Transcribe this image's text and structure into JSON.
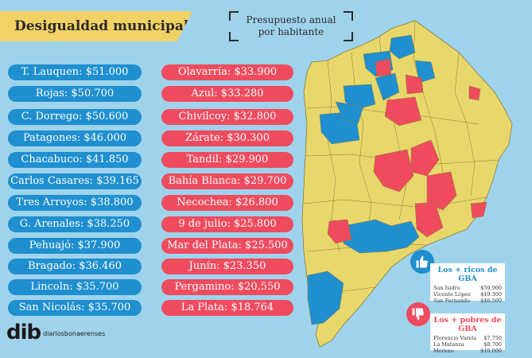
{
  "title": "Desigualdad municipal",
  "subtitle_line1": "Presupuesto anual",
  "subtitle_line2": "por habitante",
  "blue_list": [
    "T. Lauquen: $51.000",
    "Rojas: $50.700",
    "C. Dorrego: $50.600",
    "Patagones: $46.000",
    "Chacabuco: $41.850",
    "Carlos Casares: $39.165",
    "Tres Arroyos: $38.800",
    "G. Arenales: $38.250",
    "Pehuajó: $37.900",
    "Bragado: $36.460",
    "Lincoln: $35.700",
    "San Nicolás: $35.700"
  ],
  "red_list": [
    "Olavarría: $33.900",
    "Azul: $33.280",
    "Chivilcoy: $32.800",
    "Zárate: $30.300",
    "Tandil: $29.900",
    "Bahía Blanca: $29.700",
    "Necochea: $26.800",
    "9 de julio: $25.800",
    "Mar del Plata: $25.500",
    "Junín: $23.350",
    "Pergamino: $20.550",
    "La Plata: $18.764"
  ],
  "rich_gba": {
    "title": "Los + ricos de GBA",
    "rows": [
      {
        "name": "San Isidro",
        "value": "$59.900"
      },
      {
        "name": "Vicente López",
        "value": "$49.300"
      },
      {
        "name": "San Fernando",
        "value": "$46.500"
      }
    ]
  },
  "poor_gba": {
    "title": "Los + pobres de GBA",
    "rows": [
      {
        "name": "Florencio Varela",
        "value": "$7.750"
      },
      {
        "name": "La Matanza",
        "value": "$8.700"
      },
      {
        "name": "Moreno",
        "value": "$10.000"
      }
    ]
  },
  "logo": {
    "mark": "dib",
    "text": "diariosbonaerenses"
  },
  "colors": {
    "blue": "#1f8fd0",
    "red": "#ef4b5e",
    "yellow": "#e8d76a",
    "background": "#9fd3ec"
  },
  "icons": {
    "thumb_up": "thumbs-up-icon",
    "thumb_down": "thumbs-down-icon"
  }
}
